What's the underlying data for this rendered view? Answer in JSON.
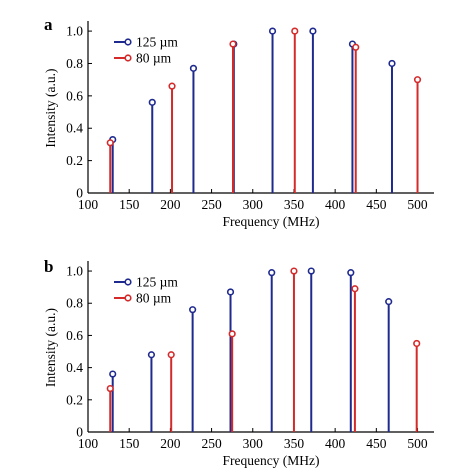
{
  "colors": {
    "series_125": "#1f2a8f",
    "series_80": "#d42a2a",
    "axis": "#000000"
  },
  "chart_data": [
    {
      "panel_label": "a",
      "type": "stem",
      "xlabel": "Frequency (MHz)",
      "ylabel": "Intensity (a.u.)",
      "xlim": [
        100,
        520
      ],
      "ylim": [
        0,
        1.05
      ],
      "xticks": [
        100,
        150,
        200,
        250,
        300,
        350,
        400,
        450,
        500
      ],
      "yticks": [
        0,
        0.2,
        0.4,
        0.6,
        0.8,
        1.0
      ],
      "ytick_labels": [
        "0",
        "0.2",
        "0.4",
        "0.6",
        "0.8",
        "1.0"
      ],
      "legend_position": "top-left",
      "series": [
        {
          "name": "125 µm",
          "color_key": "series_125",
          "points": [
            [
              130,
              0.33
            ],
            [
              178,
              0.56
            ],
            [
              228,
              0.77
            ],
            [
              277,
              0.92
            ],
            [
              324,
              1.0
            ],
            [
              373,
              1.0
            ],
            [
              421,
              0.92
            ],
            [
              469,
              0.8
            ]
          ]
        },
        {
          "name": "80 µm",
          "color_key": "series_80",
          "points": [
            [
              127,
              0.31
            ],
            [
              202,
              0.66
            ],
            [
              276,
              0.92
            ],
            [
              351,
              1.0
            ],
            [
              425,
              0.9
            ],
            [
              500,
              0.7
            ]
          ]
        }
      ]
    },
    {
      "panel_label": "b",
      "type": "stem",
      "xlabel": "Frequency (MHz)",
      "ylabel": "Intensity (a.u.)",
      "xlim": [
        100,
        520
      ],
      "ylim": [
        0,
        1.05
      ],
      "xticks": [
        100,
        150,
        200,
        250,
        300,
        350,
        400,
        450,
        500
      ],
      "yticks": [
        0,
        0.2,
        0.4,
        0.6,
        0.8,
        1.0
      ],
      "ytick_labels": [
        "0",
        "0.2",
        "0.4",
        "0.6",
        "0.8",
        "1.0"
      ],
      "legend_position": "top-left",
      "series": [
        {
          "name": "125 µm",
          "color_key": "series_125",
          "points": [
            [
              130,
              0.36
            ],
            [
              177,
              0.48
            ],
            [
              227,
              0.76
            ],
            [
              273,
              0.87
            ],
            [
              323,
              0.99
            ],
            [
              371,
              1.0
            ],
            [
              419,
              0.99
            ],
            [
              465,
              0.81
            ]
          ]
        },
        {
          "name": "80 µm",
          "color_key": "series_80",
          "points": [
            [
              127,
              0.27
            ],
            [
              201,
              0.48
            ],
            [
              275,
              0.61
            ],
            [
              350,
              1.0
            ],
            [
              424,
              0.89
            ],
            [
              499,
              0.55
            ]
          ]
        }
      ]
    }
  ]
}
